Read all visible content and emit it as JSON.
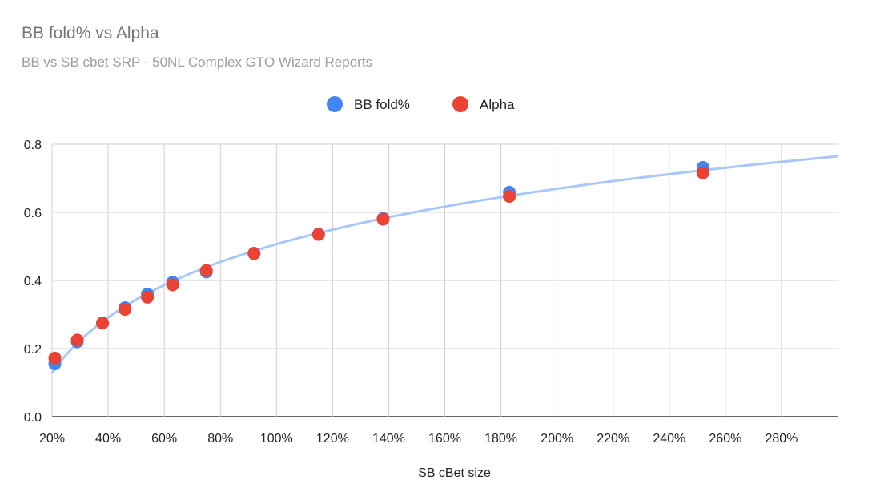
{
  "chart_data": {
    "type": "scatter",
    "title": "BB fold% vs Alpha",
    "subtitle": "BB vs SB cbet SRP - 50NL Complex GTO Wizard Reports",
    "xlabel": "SB cBet size",
    "ylabel": "",
    "xlim": [
      20,
      300
    ],
    "ylim": [
      0,
      0.8
    ],
    "x_ticks": [
      "20%",
      "40%",
      "60%",
      "80%",
      "100%",
      "120%",
      "140%",
      "160%",
      "180%",
      "200%",
      "220%",
      "240%",
      "260%",
      "280%"
    ],
    "y_ticks": [
      "0.0",
      "0.2",
      "0.4",
      "0.6",
      "0.8"
    ],
    "grid": true,
    "legend": "top",
    "x": [
      21,
      29,
      38,
      46,
      54,
      63,
      75,
      92,
      115,
      138,
      183,
      252
    ],
    "series": [
      {
        "name": "BB fold%",
        "color": "#4285f4",
        "values": [
          0.155,
          0.22,
          0.275,
          0.32,
          0.36,
          0.395,
          0.425,
          0.48,
          0.536,
          0.582,
          0.659,
          0.732
        ]
      },
      {
        "name": "Alpha",
        "color": "#ea4335",
        "values": [
          0.172,
          0.225,
          0.275,
          0.315,
          0.351,
          0.387,
          0.429,
          0.479,
          0.535,
          0.58,
          0.647,
          0.716
        ]
      }
    ],
    "trendline": {
      "type": "logarithmic",
      "series": "BB fold%",
      "color": "#a8c7fa"
    }
  }
}
